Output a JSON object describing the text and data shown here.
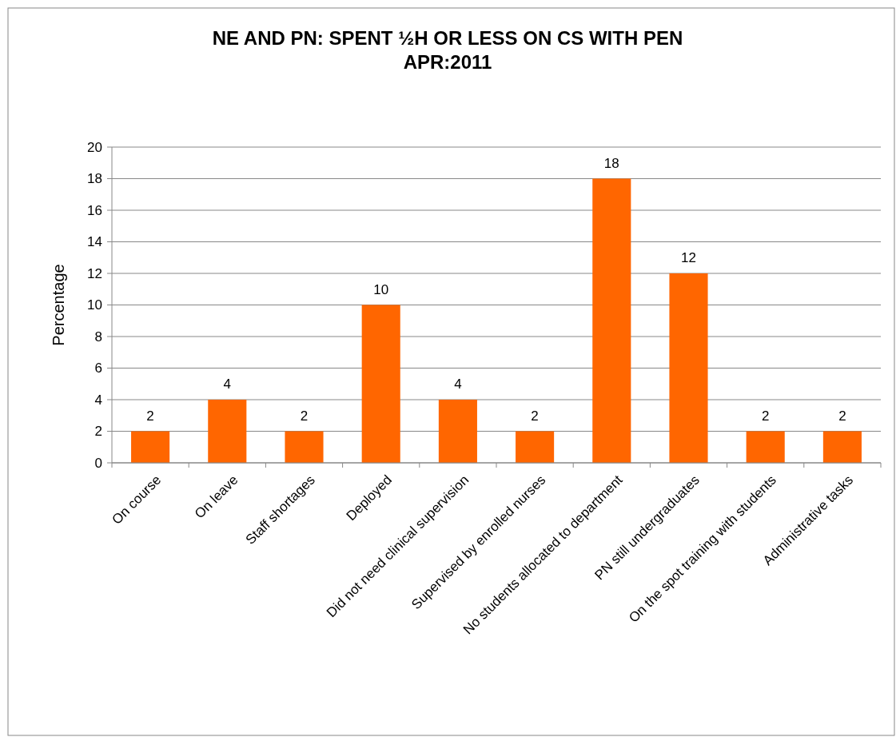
{
  "chart_data": {
    "type": "bar",
    "title": "NE AND PN: SPENT ½H OR LESS ON CS WITH PEN\nAPR:2011",
    "ylabel": "Percentage",
    "categories": [
      "On course",
      "On leave",
      "Staff shortages",
      "Deployed",
      "Did not need clinical supervision",
      "Supervised by enrolled nurses",
      "No students allocated to department",
      "PN still undergraduates",
      "On the spot training with students",
      "Administrative tasks"
    ],
    "values": [
      2,
      4,
      2,
      10,
      4,
      2,
      18,
      12,
      2,
      2
    ],
    "color": "#ff6600",
    "ylim": [
      0,
      20
    ],
    "yticks": [
      0,
      2,
      4,
      6,
      8,
      10,
      12,
      14,
      16,
      18,
      20
    ],
    "grid": "y",
    "data_labels": true
  }
}
